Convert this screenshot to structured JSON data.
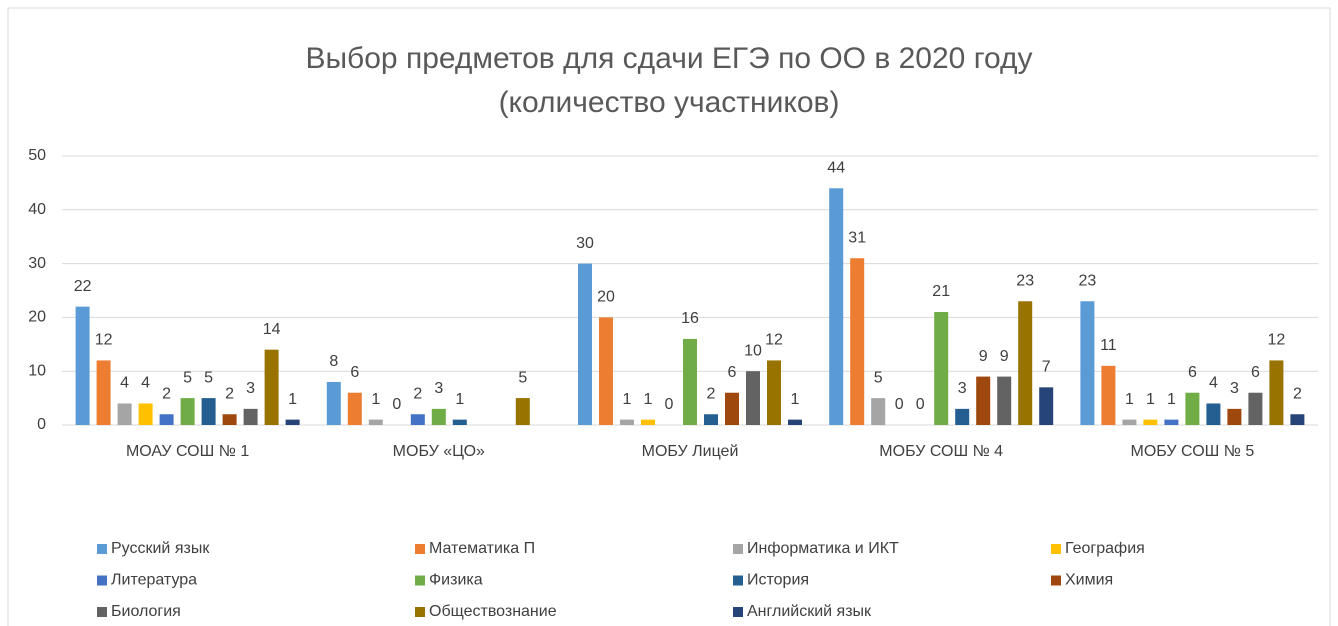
{
  "chart_data": {
    "type": "bar",
    "title": [
      "Выбор предметов для сдачи ЕГЭ по ОО в 2020 году",
      "(количество участников)"
    ],
    "categories": [
      "МОАУ СОШ № 1",
      "МОБУ «ЦО»",
      "МОБУ Лицей",
      "МОБУ СОШ № 4",
      "МОБУ СОШ № 5"
    ],
    "series": [
      {
        "name": "Русский язык",
        "color": "#5b9bd5",
        "values": [
          22,
          8,
          30,
          44,
          23
        ]
      },
      {
        "name": "Математика П",
        "color": "#ed7d31",
        "values": [
          12,
          6,
          20,
          31,
          11
        ]
      },
      {
        "name": "Информатика и ИКТ",
        "color": "#a5a5a5",
        "values": [
          4,
          1,
          1,
          5,
          1
        ]
      },
      {
        "name": "География",
        "color": "#ffc000",
        "values": [
          4,
          0,
          1,
          0,
          1
        ]
      },
      {
        "name": "Литература",
        "color": "#4472c4",
        "values": [
          2,
          2,
          0,
          0,
          1
        ]
      },
      {
        "name": "Физика",
        "color": "#70ad47",
        "values": [
          5,
          3,
          16,
          21,
          6
        ]
      },
      {
        "name": "История",
        "color": "#255e91",
        "values": [
          5,
          1,
          2,
          3,
          4
        ]
      },
      {
        "name": "Химия",
        "color": "#9e480e",
        "values": [
          2,
          null,
          6,
          9,
          3
        ]
      },
      {
        "name": "Биология",
        "color": "#636363",
        "values": [
          3,
          null,
          10,
          9,
          6
        ]
      },
      {
        "name": "Обществознание",
        "color": "#997300",
        "values": [
          14,
          5,
          12,
          23,
          12
        ]
      },
      {
        "name": "Английский язык",
        "color": "#264478",
        "values": [
          1,
          null,
          1,
          7,
          2
        ]
      }
    ],
    "ylim": [
      0,
      50
    ],
    "yticks": [
      0,
      10,
      20,
      30,
      40,
      50
    ],
    "grid": true,
    "legend": "bottom"
  }
}
